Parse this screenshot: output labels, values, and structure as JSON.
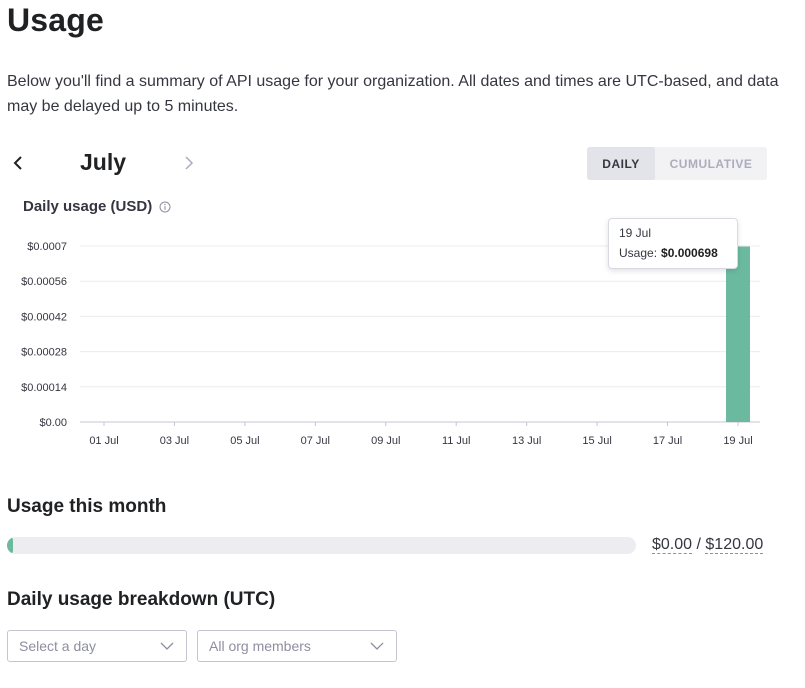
{
  "page": {
    "title": "Usage",
    "intro": "Below you'll find a summary of API usage for your organization. All dates and times are UTC-based, and data may be delayed up to 5 minutes."
  },
  "month_nav": {
    "month": "July"
  },
  "view_toggle": {
    "daily": "DAILY",
    "cumulative": "CUMULATIVE",
    "selected": "DAILY"
  },
  "chart_title": "Daily usage (USD)",
  "tooltip": {
    "date": "19 Jul",
    "label": "Usage:",
    "value": "$0.000698"
  },
  "chart_data": {
    "type": "bar",
    "title": "Daily usage (USD)",
    "x": [
      "01 Jul",
      "02 Jul",
      "03 Jul",
      "04 Jul",
      "05 Jul",
      "06 Jul",
      "07 Jul",
      "08 Jul",
      "09 Jul",
      "10 Jul",
      "11 Jul",
      "12 Jul",
      "13 Jul",
      "14 Jul",
      "15 Jul",
      "16 Jul",
      "17 Jul",
      "18 Jul",
      "19 Jul"
    ],
    "values": [
      0,
      0,
      0,
      0,
      0,
      0,
      0,
      0,
      0,
      0,
      0,
      0,
      0,
      0,
      0,
      0,
      0,
      0,
      0.000698
    ],
    "x_tick_labels": [
      "01 Jul",
      "03 Jul",
      "05 Jul",
      "07 Jul",
      "09 Jul",
      "11 Jul",
      "13 Jul",
      "15 Jul",
      "17 Jul",
      "19 Jul"
    ],
    "y_ticks": [
      0,
      0.00014,
      0.00028,
      0.00042,
      0.00056,
      0.0007
    ],
    "y_tick_labels": [
      "$0.00",
      "$0.00014",
      "$0.00028",
      "$0.00042",
      "$0.00056",
      "$0.0007"
    ],
    "ylim": [
      0,
      0.0007
    ],
    "grid": true,
    "color": "#6bbaa0"
  },
  "usage_month": {
    "title": "Usage this month",
    "used": "$0.00",
    "separator": "/",
    "limit": "$120.00",
    "fraction": 0.0
  },
  "breakdown": {
    "title": "Daily usage breakdown (UTC)",
    "day_placeholder": "Select a day",
    "members_value": "All org members"
  }
}
